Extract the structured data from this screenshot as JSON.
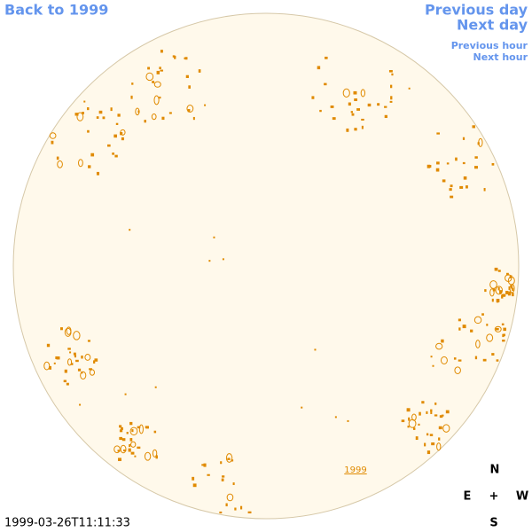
{
  "nav": {
    "back": "Back to 1999",
    "previous_day": "Previous day",
    "next_day": "Next day",
    "previous_hour": "Previous hour",
    "next_hour": "Next hour"
  },
  "disk_link": "1999",
  "compass": {
    "north": "N",
    "east": "E",
    "center": "+",
    "west": "W",
    "south": "S"
  },
  "timestamp": "1999-03-26T11:11:33"
}
